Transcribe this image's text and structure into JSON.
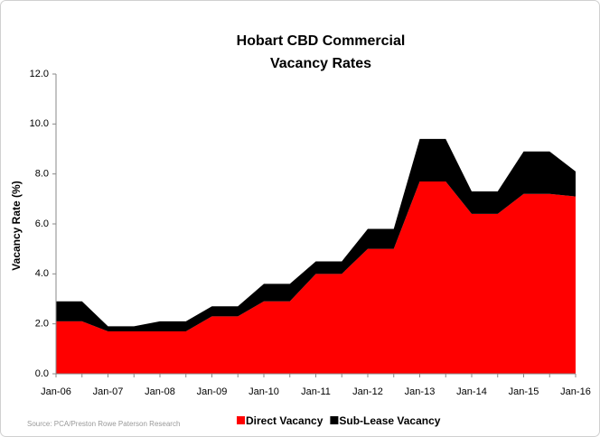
{
  "chart_data": {
    "type": "stacked_area",
    "title": "Hobart CBD Commercial",
    "subtitle": "Vacancy Rates",
    "y_label": "Vacancy Rate (%)",
    "annotation": "Source: PCA/Preston Rowe Paterson Research",
    "categories": [
      "Jan-06",
      null,
      "Jan-07",
      null,
      "Jan-08",
      null,
      "Jan-09",
      null,
      "Jan-10",
      null,
      "Jan-11",
      null,
      "Jan-12",
      null,
      "Jan-13",
      null,
      "Jan-14",
      null,
      "Jan-15",
      null,
      "Jan-16"
    ],
    "series": [
      {
        "name": "Direct Vacancy",
        "color": "#ff0000",
        "values": [
          2.1,
          2.1,
          1.7,
          1.7,
          1.7,
          1.7,
          2.3,
          2.3,
          2.9,
          2.9,
          4.0,
          4.0,
          5.0,
          5.0,
          7.7,
          7.7,
          6.4,
          6.4,
          7.2,
          7.2,
          7.1
        ]
      },
      {
        "name": "Sub-Lease Vacancy",
        "color": "#000000",
        "values": [
          0.8,
          0.8,
          0.2,
          0.2,
          0.4,
          0.4,
          0.4,
          0.4,
          0.7,
          0.7,
          0.5,
          0.5,
          0.8,
          0.8,
          1.7,
          1.7,
          0.9,
          0.9,
          1.7,
          1.7,
          1.0
        ]
      }
    ],
    "ylim": [
      0,
      12
    ],
    "yticks": [
      {
        "value": 0,
        "label": "0.0"
      },
      {
        "value": 2,
        "label": "2.0"
      },
      {
        "value": 4,
        "label": "4.0"
      },
      {
        "value": 6,
        "label": "6.0"
      },
      {
        "value": 8,
        "label": "8.0"
      },
      {
        "value": 10,
        "label": "10.0"
      },
      {
        "value": 12,
        "label": "12.0"
      }
    ],
    "legend": "bottom",
    "grid": false
  }
}
